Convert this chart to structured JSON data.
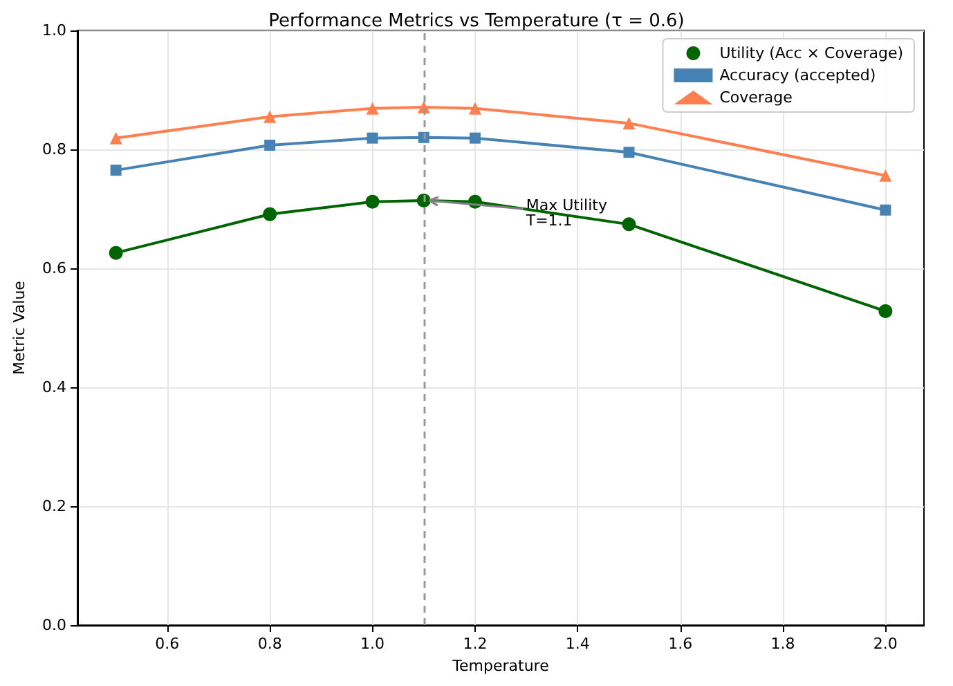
{
  "chart_data": {
    "type": "line",
    "title": "Performance Metrics vs Temperature (τ = 0.6)",
    "xlabel": "Temperature",
    "ylabel": "Metric Value",
    "x": [
      0.5,
      0.8,
      1.0,
      1.1,
      1.2,
      1.5,
      2.0
    ],
    "series": [
      {
        "name": "Utility (Acc × Coverage)",
        "color": "#006400",
        "marker": "circle",
        "values": [
          0.626,
          0.691,
          0.712,
          0.714,
          0.712,
          0.674,
          0.528
        ]
      },
      {
        "name": "Accuracy (accepted)",
        "color": "#4682b4",
        "marker": "square",
        "values": [
          0.765,
          0.807,
          0.819,
          0.82,
          0.819,
          0.795,
          0.698
        ]
      },
      {
        "name": "Coverage",
        "color": "#ff7f50",
        "marker": "triangle",
        "values": [
          0.819,
          0.855,
          0.869,
          0.871,
          0.869,
          0.844,
          0.756
        ]
      }
    ],
    "xlim": [
      0.425,
      2.075
    ],
    "xticks": [
      0.6,
      0.8,
      {
        "value": 1,
        "label": "1.0"
      },
      1.2,
      1.4,
      1.6,
      1.8,
      {
        "value": 2,
        "label": "2.0"
      }
    ],
    "ylim": [
      0,
      1
    ],
    "yticks": [
      {
        "value": 0,
        "label": "0.0"
      },
      0.2,
      0.4,
      0.6,
      0.8,
      {
        "value": 1,
        "label": "1.0"
      }
    ],
    "ref_lines": [
      {
        "axis": "x",
        "value": 1.1,
        "color": "#999999",
        "line_style": "dashed"
      }
    ],
    "annotations": [
      {
        "text": "Max Utility\nT=1.1",
        "x": 1.1,
        "y": 0.714
      }
    ],
    "grid": true,
    "legend": "top right",
    "line_style": "solid"
  }
}
